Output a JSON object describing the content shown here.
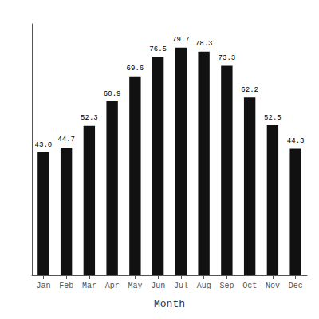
{
  "chart_data": {
    "type": "bar",
    "categories": [
      "Jan",
      "Feb",
      "Mar",
      "Apr",
      "May",
      "Jun",
      "Jul",
      "Aug",
      "Sep",
      "Oct",
      "Nov",
      "Dec"
    ],
    "values": [
      43.0,
      44.7,
      52.3,
      60.9,
      69.6,
      76.5,
      79.7,
      78.3,
      73.3,
      62.2,
      52.5,
      44.3
    ],
    "value_labels": [
      "43.0",
      "44.7",
      "52.3",
      "60.9",
      "69.6",
      "76.5",
      "79.7",
      "78.3",
      "73.3",
      "62.2",
      "52.5",
      "44.3"
    ],
    "color": "#111111",
    "xlabel": "Month",
    "ylim": [
      0,
      88
    ],
    "data_labels": true,
    "tick_labels": "x",
    "grid": false
  }
}
